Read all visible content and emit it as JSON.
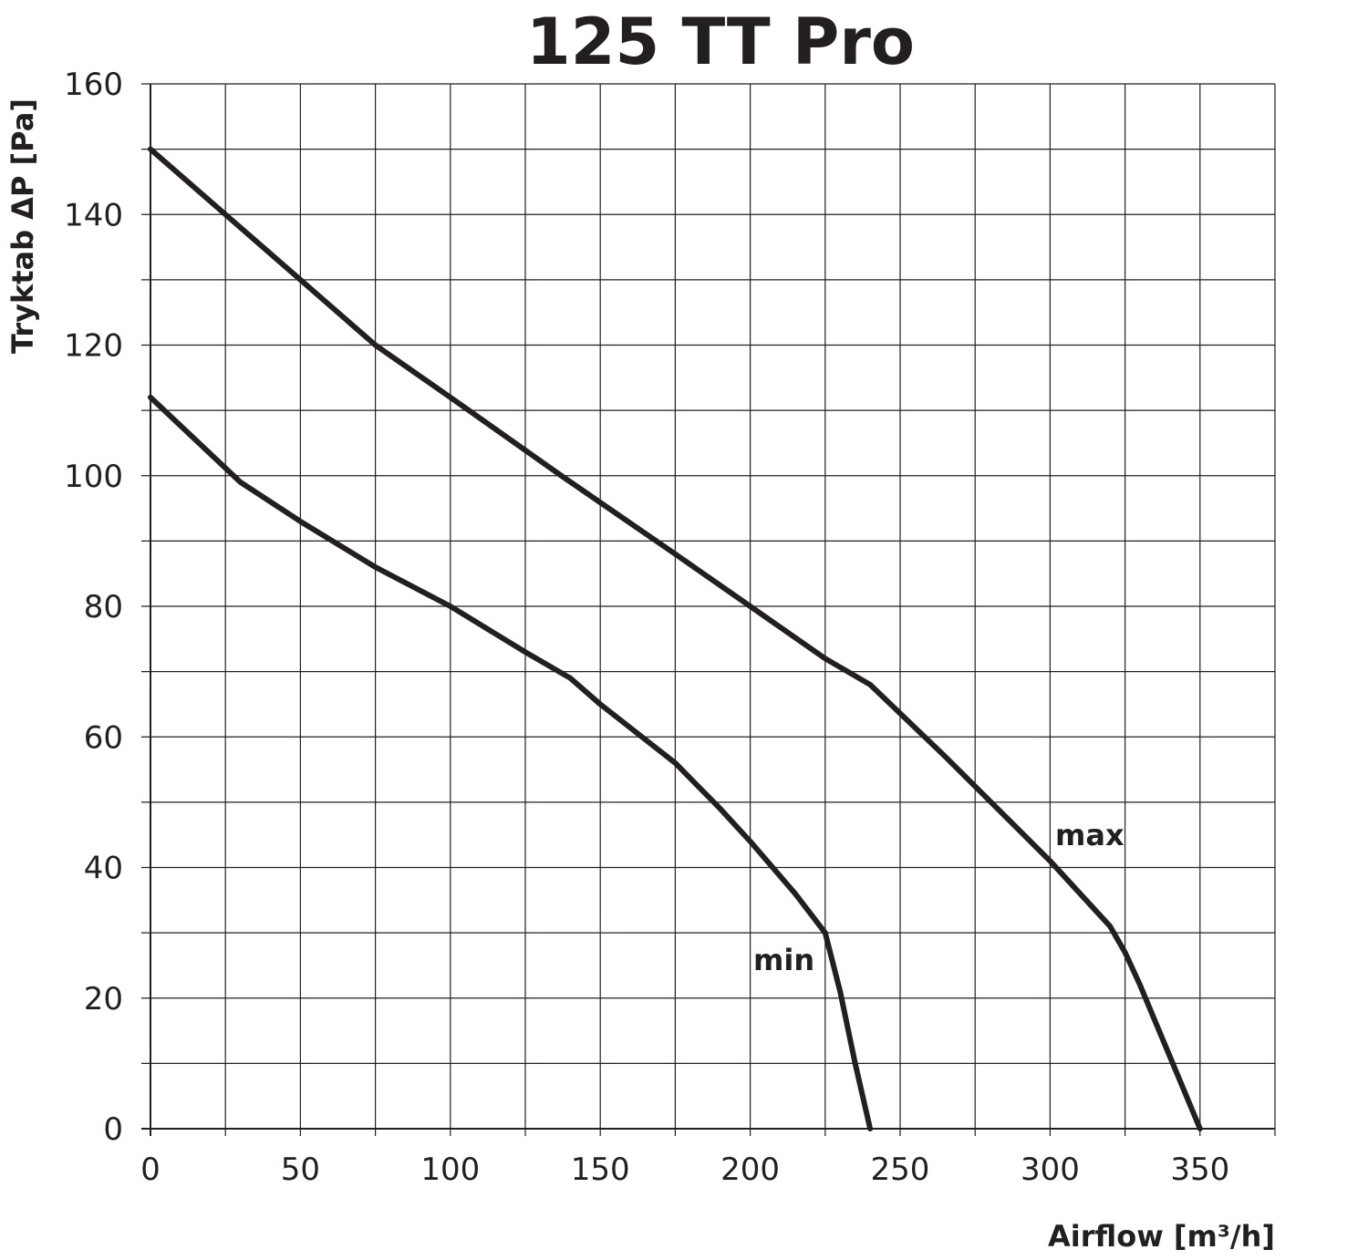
{
  "chart_data": {
    "type": "line",
    "title": "125 TT Pro",
    "xlabel": "Airflow [m³/h]",
    "ylabel": "Tryktab ΔP [Pa]",
    "xlim": [
      0,
      375
    ],
    "ylim": [
      0,
      160
    ],
    "x_ticks": [
      0,
      50,
      100,
      150,
      200,
      250,
      300,
      350
    ],
    "y_ticks": [
      0,
      20,
      40,
      60,
      80,
      100,
      120,
      140,
      160
    ],
    "x_grid_step": 25,
    "y_grid_step": 10,
    "grid": true,
    "line_color": "#231f20",
    "series": [
      {
        "name": "max",
        "x": [
          0,
          50,
          75,
          100,
          137,
          175,
          200,
          225,
          240,
          265,
          300,
          320,
          325,
          330,
          340,
          350
        ],
        "y": [
          150,
          130,
          120,
          112,
          100,
          88,
          80,
          72,
          68,
          57,
          41,
          31,
          27,
          22,
          11,
          0
        ]
      },
      {
        "name": "min",
        "x": [
          0,
          30,
          50,
          75,
          100,
          125,
          140,
          150,
          175,
          190,
          200,
          215,
          225,
          230,
          235,
          240
        ],
        "y": [
          112,
          99,
          93,
          86,
          80,
          73,
          69,
          65,
          56,
          49,
          44,
          36,
          30,
          21,
          10,
          0
        ]
      }
    ]
  }
}
